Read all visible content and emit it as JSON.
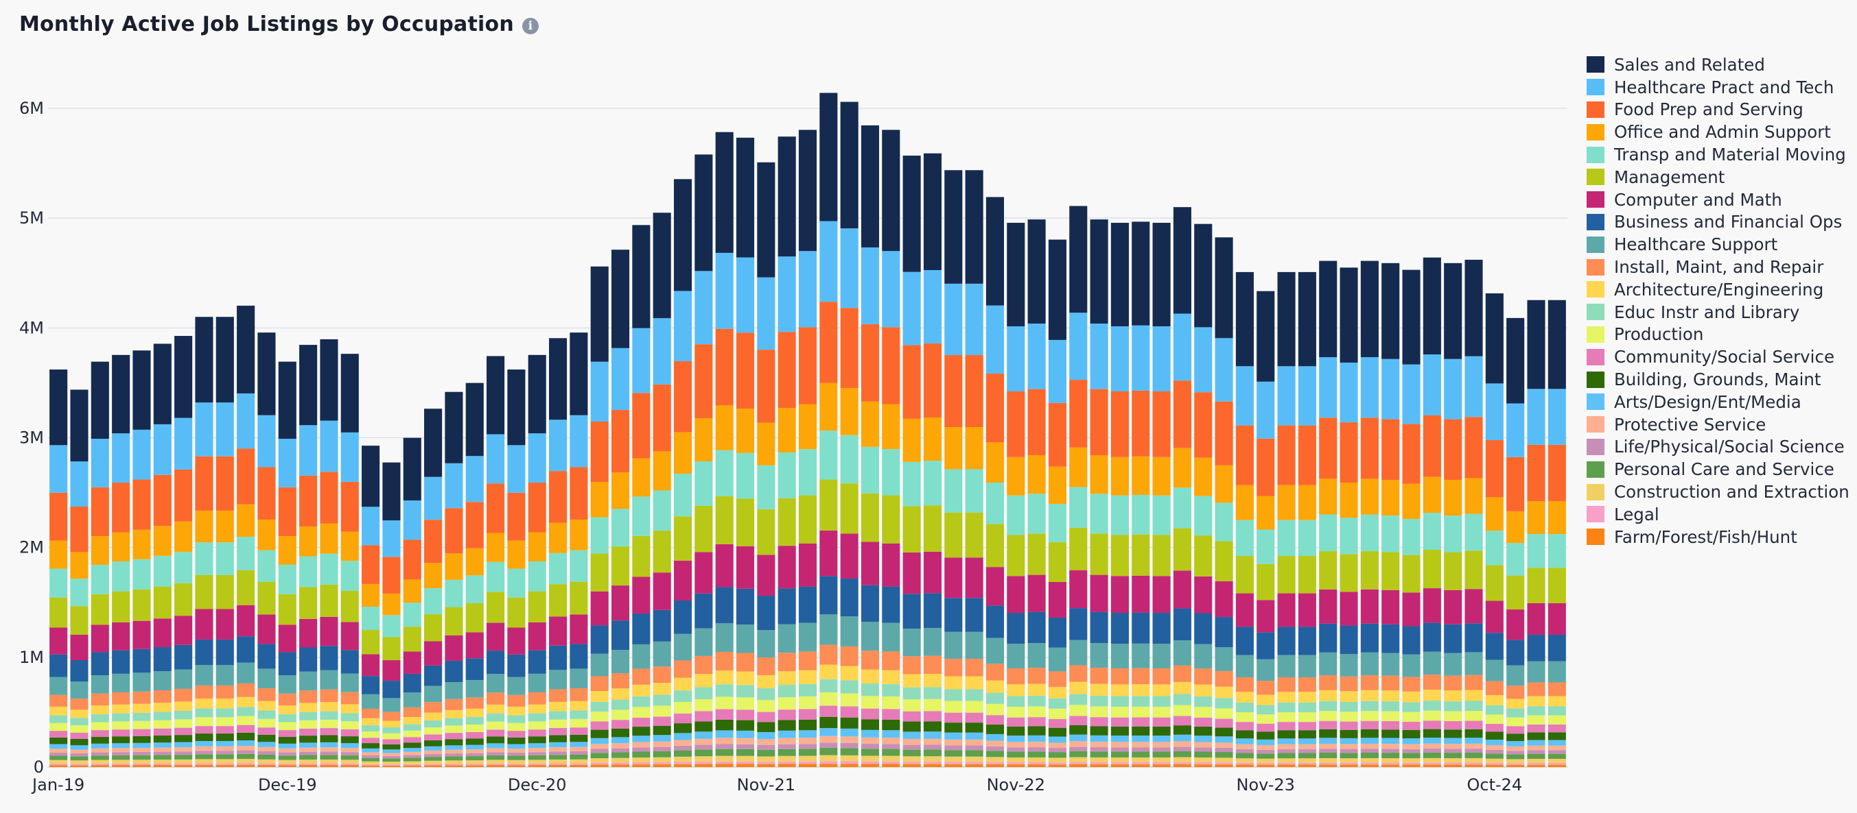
{
  "header": {
    "title": "Monthly Active Job Listings by Occupation",
    "info_icon": "info-icon"
  },
  "chart_data": {
    "type": "bar",
    "stacked": true,
    "title": "Monthly Active Job Listings by Occupation",
    "xlabel": "",
    "ylabel": "",
    "ylim": [
      0,
      6500000
    ],
    "y_ticks": [
      0,
      1000000,
      2000000,
      3000000,
      4000000,
      5000000,
      6000000
    ],
    "y_tick_labels": [
      "0",
      "1M",
      "2M",
      "3M",
      "4M",
      "5M",
      "6M"
    ],
    "x_tick_labels": [
      {
        "index": 0,
        "label": "Jan-19"
      },
      {
        "index": 11,
        "label": "Dec-19"
      },
      {
        "index": 23,
        "label": "Dec-20"
      },
      {
        "index": 34,
        "label": "Nov-21"
      },
      {
        "index": 46,
        "label": "Nov-22"
      },
      {
        "index": 58,
        "label": "Nov-23"
      },
      {
        "index": 69,
        "label": "Oct-24"
      }
    ],
    "grid": "horizontal",
    "legend_position": "right",
    "categories": [
      "Jan-19",
      "Feb-19",
      "Mar-19",
      "Apr-19",
      "May-19",
      "Jun-19",
      "Jul-19",
      "Aug-19",
      "Sep-19",
      "Oct-19",
      "Nov-19",
      "Dec-19",
      "Jan-20",
      "Feb-20",
      "Mar-20",
      "Apr-20",
      "May-20",
      "Jun-20",
      "Jul-20",
      "Aug-20",
      "Sep-20",
      "Oct-20",
      "Nov-20",
      "Dec-20",
      "Jan-21",
      "Feb-21",
      "Mar-21",
      "Apr-21",
      "May-21",
      "Jun-21",
      "Jul-21",
      "Aug-21",
      "Sep-21",
      "Oct-21",
      "Nov-21",
      "Dec-21",
      "Jan-22",
      "Feb-22",
      "Mar-22",
      "Apr-22",
      "May-22",
      "Jun-22",
      "Jul-22",
      "Aug-22",
      "Sep-22",
      "Oct-22",
      "Nov-22",
      "Dec-22",
      "Jan-23",
      "Feb-23",
      "Mar-23",
      "Apr-23",
      "May-23",
      "Jun-23",
      "Jul-23",
      "Aug-23",
      "Sep-23",
      "Oct-23",
      "Nov-23",
      "Dec-23",
      "Jan-24",
      "Feb-24",
      "Mar-24",
      "Apr-24",
      "May-24",
      "Jun-24",
      "Jul-24",
      "Aug-24",
      "Sep-24",
      "Oct-24",
      "Nov-24",
      "Dec-24",
      "Jan-25"
    ],
    "totals": [
      3550000,
      3370000,
      3620000,
      3680000,
      3720000,
      3780000,
      3850000,
      4020000,
      4020000,
      4120000,
      3880000,
      3620000,
      3770000,
      3820000,
      3690000,
      2870000,
      2720000,
      2940000,
      3200000,
      3350000,
      3430000,
      3670000,
      3550000,
      3680000,
      3830000,
      3880000,
      4470000,
      4620000,
      4840000,
      4950000,
      5250000,
      5470000,
      5670000,
      5620000,
      5400000,
      5630000,
      5690000,
      6020000,
      5940000,
      5730000,
      5690000,
      5460000,
      5480000,
      5330000,
      5330000,
      5090000,
      4860000,
      4890000,
      4710000,
      5010000,
      4890000,
      4860000,
      4870000,
      4860000,
      5000000,
      4850000,
      4730000,
      4420000,
      4250000,
      4420000,
      4420000,
      4520000,
      4460000,
      4520000,
      4500000,
      4440000,
      4550000,
      4500000,
      4530000,
      4230000,
      4010000,
      4170000,
      4170000
    ],
    "series": [
      {
        "name": "Sales and Related",
        "color": "#152a4f",
        "share": 0.194
      },
      {
        "name": "Healthcare Pract and Tech",
        "color": "#58bdf7",
        "share": 0.122
      },
      {
        "name": "Food Prep and Serving",
        "color": "#fc682b",
        "share": 0.123
      },
      {
        "name": "Office and Admin Support",
        "color": "#fda607",
        "share": 0.072
      },
      {
        "name": "Transp and Material Moving",
        "color": "#7fdfcb",
        "share": 0.074
      },
      {
        "name": "Management",
        "color": "#b8c816",
        "share": 0.077
      },
      {
        "name": "Computer and Math",
        "color": "#c42674",
        "share": 0.069
      },
      {
        "name": "Business and Financial Ops",
        "color": "#2360a0",
        "share": 0.058
      },
      {
        "name": "Healthcare Support",
        "color": "#5da9aa",
        "share": 0.046
      },
      {
        "name": "Install, Maint, and Repair",
        "color": "#fd8c55",
        "share": 0.03
      },
      {
        "name": "Architecture/Engineering",
        "color": "#ffd64d",
        "share": 0.022
      },
      {
        "name": "Educ Instr and Library",
        "color": "#8edcbb",
        "share": 0.02
      },
      {
        "name": "Production",
        "color": "#e5f563",
        "share": 0.02
      },
      {
        "name": "Community/Social Service",
        "color": "#e67bb8",
        "share": 0.017
      },
      {
        "name": "Building, Grounds, Maint",
        "color": "#2e6a05",
        "share": 0.017
      },
      {
        "name": "Arts/Design/Ent/Media",
        "color": "#5ec2f8",
        "share": 0.012
      },
      {
        "name": "Protective Service",
        "color": "#fdb08f",
        "share": 0.01
      },
      {
        "name": "Life/Physical/Social Science",
        "color": "#c78fb6",
        "share": 0.008
      },
      {
        "name": "Personal Care and Service",
        "color": "#5d9f4c",
        "share": 0.011
      },
      {
        "name": "Construction and Extraction",
        "color": "#f2cf62",
        "share": 0.009
      },
      {
        "name": "Legal",
        "color": "#f9a0c8",
        "share": 0.004
      },
      {
        "name": "Farm/Forest/Fish/Hunt",
        "color": "#fb8213",
        "share": 0.005
      }
    ]
  }
}
